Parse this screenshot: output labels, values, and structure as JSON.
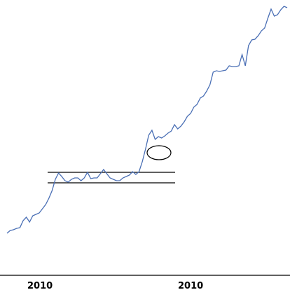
{
  "chart_data": {
    "type": "line",
    "title": "",
    "xlabel": "",
    "ylabel": "",
    "grid": false,
    "legend": "none",
    "x_tick_labels": [
      "2010",
      "2010"
    ],
    "x": [
      0,
      1,
      2,
      3,
      4,
      5,
      6,
      7,
      8,
      9,
      10,
      11,
      12,
      13,
      14,
      15,
      16,
      17,
      18,
      19,
      20,
      21,
      22,
      23,
      24,
      25,
      26,
      27,
      28,
      29,
      30,
      31,
      32,
      33,
      34,
      35,
      36,
      37,
      38,
      39,
      40,
      41,
      42,
      43,
      44,
      45,
      46,
      47,
      48,
      49,
      50,
      51,
      52,
      53,
      54,
      55,
      56,
      57,
      58,
      59,
      60,
      61,
      62,
      63,
      64,
      65,
      66,
      67,
      68,
      69,
      70,
      71,
      72,
      73,
      74,
      75,
      76,
      77,
      78,
      79,
      80,
      81,
      82,
      83,
      84,
      85,
      86,
      87,
      88,
      89,
      90,
      91,
      92,
      93,
      94,
      95,
      96,
      97,
      98,
      99,
      100
    ],
    "series": [
      {
        "values": [
          7,
          11,
          12,
          14,
          15,
          25,
          30,
          23,
          32,
          34,
          36,
          42,
          48,
          57,
          68,
          84,
          93,
          88,
          82,
          80,
          84,
          86,
          86,
          82,
          86,
          94,
          85,
          86,
          86,
          92,
          98,
          92,
          86,
          84,
          82,
          82,
          86,
          88,
          90,
          95,
          91,
          95,
          109,
          127,
          147,
          154,
          141,
          145,
          143,
          146,
          150,
          153,
          162,
          156,
          160,
          166,
          174,
          178,
          187,
          191,
          200,
          203,
          210,
          219,
          237,
          239,
          238,
          239,
          240,
          246,
          245,
          245,
          246,
          262,
          246,
          275,
          283,
          284,
          289,
          296,
          300,
          314,
          327,
          317,
          319,
          326,
          331,
          329
        ],
        "x": [
          0,
          1,
          2,
          3,
          4,
          5,
          6,
          7,
          8,
          9,
          10,
          11,
          12,
          13,
          14,
          15,
          16,
          17,
          18,
          19,
          20,
          21,
          22,
          23,
          24,
          25,
          26,
          27,
          28,
          29,
          30,
          31,
          32,
          33,
          34,
          35,
          36,
          37,
          38,
          39,
          40,
          41,
          42,
          43,
          44,
          45,
          46,
          47,
          48,
          49,
          50,
          51,
          52,
          53,
          54,
          55,
          56,
          57,
          58,
          59,
          60,
          61,
          62,
          63,
          64,
          65,
          66,
          67,
          68,
          69,
          70,
          71,
          72,
          73,
          74,
          75,
          76,
          77,
          78,
          79,
          80,
          81,
          82,
          83,
          84,
          85,
          86,
          87
        ]
      }
    ],
    "horizontal_lines": [
      94,
      79
    ],
    "annotation": "ellipse-around-breakout"
  },
  "colors": {
    "line": "#4a6fb5",
    "annotation": "#000000",
    "axis": "#000000"
  }
}
